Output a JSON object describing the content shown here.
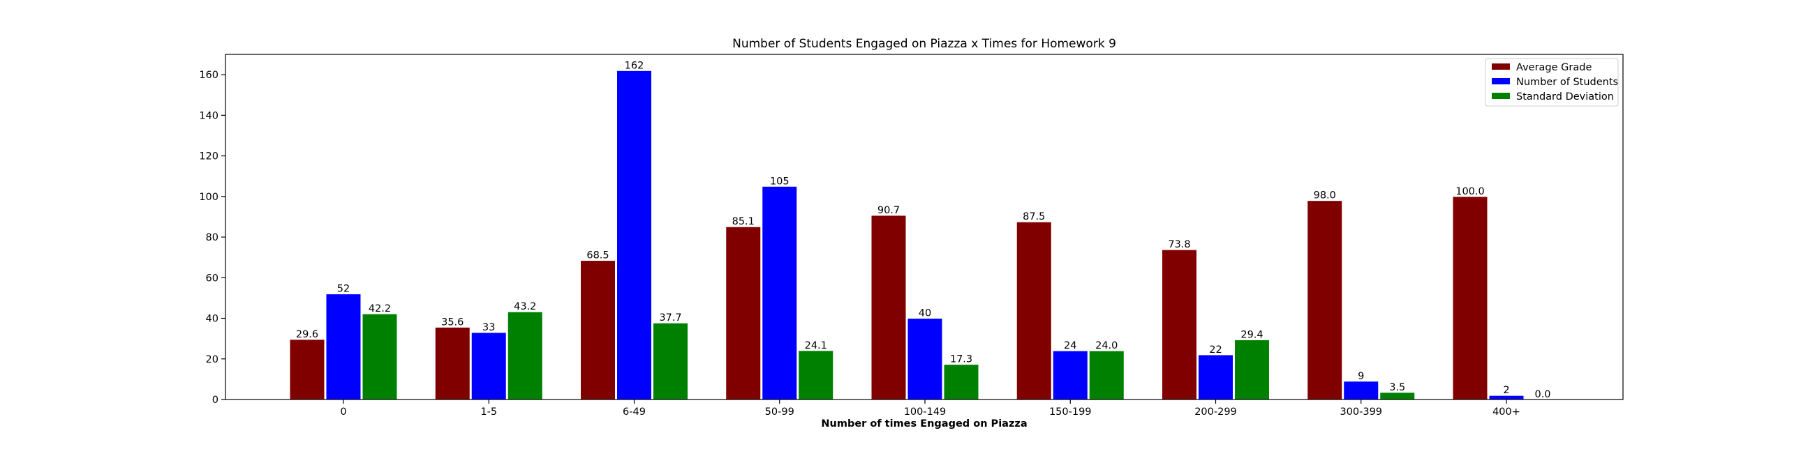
{
  "chart_data": {
    "type": "bar",
    "title": "Number of Students Engaged on Piazza x Times for Homework 9",
    "xlabel": "Number of times Engaged on Piazza",
    "ylabel": "",
    "categories": [
      "0",
      "1-5",
      "6-49",
      "50-99",
      "100-149",
      "150-199",
      "200-299",
      "300-399",
      "400+"
    ],
    "series": [
      {
        "name": "Average Grade",
        "color": "#800000",
        "values": [
          29.6,
          35.6,
          68.5,
          85.1,
          90.7,
          87.5,
          73.8,
          98.0,
          100.0
        ],
        "labels": [
          "29.6",
          "35.6",
          "68.5",
          "85.1",
          "90.7",
          "87.5",
          "73.8",
          "98.0",
          "100.0"
        ]
      },
      {
        "name": "Number of Students",
        "color": "#0000ff",
        "values": [
          52,
          33,
          162,
          105,
          40,
          24,
          22,
          9,
          2
        ],
        "labels": [
          "52",
          "33",
          "162",
          "105",
          "40",
          "24",
          "22",
          "9",
          "2"
        ]
      },
      {
        "name": "Standard Deviation",
        "color": "#008000",
        "values": [
          42.2,
          43.2,
          37.7,
          24.1,
          17.3,
          24.0,
          29.4,
          3.5,
          0.0
        ],
        "labels": [
          "42.2",
          "43.2",
          "37.7",
          "24.1",
          "17.3",
          "24.0",
          "29.4",
          "3.5",
          "0.0"
        ]
      }
    ],
    "ylim": [
      0,
      170
    ],
    "yticks": [
      0,
      20,
      40,
      60,
      80,
      100,
      120,
      140,
      160
    ],
    "grid": false,
    "legend_position": "top-right"
  }
}
